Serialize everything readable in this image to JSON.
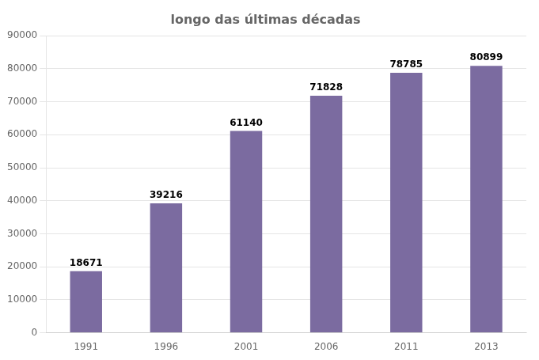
{
  "chart_data": {
    "type": "bar",
    "title": "longo das últimas décadas",
    "categories": [
      "1991",
      "1996",
      "2001",
      "2006",
      "2011",
      "2013"
    ],
    "values": [
      18671,
      39216,
      61140,
      71828,
      78785,
      80899
    ],
    "color": "#7B6BA0",
    "ylim": [
      0,
      90000
    ],
    "yticks": [
      0,
      10000,
      20000,
      30000,
      40000,
      50000,
      60000,
      70000,
      80000,
      90000
    ],
    "grid": true,
    "data_labels": true
  }
}
